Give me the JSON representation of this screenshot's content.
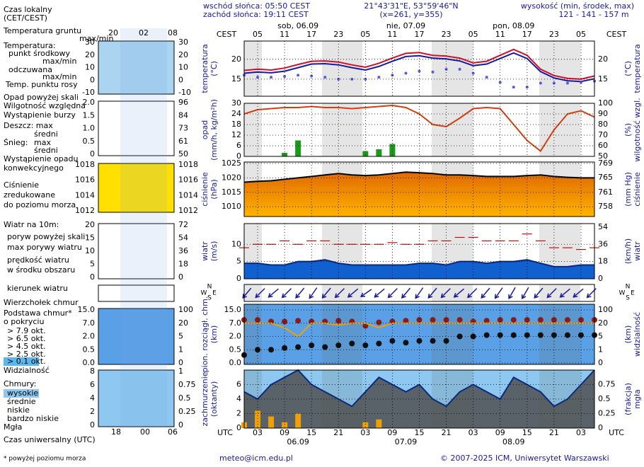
{
  "header": {
    "sunrise": "wschód słońca: 05:50 CEST",
    "sunset": "zachód słońca: 19:11 CEST",
    "coords": "21°43'31\"E, 53°59'46\"N",
    "grid_point": "(x=261,  y=355)",
    "altitude_title": "wysokość (min, środek, max)",
    "altitude": "121 - 141 - 157 m",
    "compass": [
      "N",
      "W",
      "E",
      "S"
    ]
  },
  "footer": {
    "note": "* powyżej poziomu morza",
    "email": "meteo@icm.edu.pl",
    "copyright": "© 2007-2025 ICM, Uniwersytet Warszawski"
  },
  "time_axis": {
    "top_label": "CEST",
    "bottom_label": "UTC",
    "top_hours": [
      null,
      "05",
      null,
      "11",
      null,
      "17",
      null,
      "23",
      null,
      "05",
      null,
      "11",
      null,
      "17",
      null,
      "23",
      null,
      "05",
      null,
      "11",
      null,
      "17",
      null,
      "23",
      null,
      "05",
      null
    ],
    "bottom_hours": [
      null,
      "03",
      null,
      "09",
      null,
      "15",
      null,
      "21",
      null,
      "03",
      null,
      "09",
      null,
      "15",
      null,
      "21",
      null,
      "03",
      null,
      "09",
      null,
      "15",
      null,
      "21",
      null,
      "03",
      null
    ],
    "top_dates": [
      null,
      null,
      null,
      null,
      "sob, 06.09",
      null,
      null,
      null,
      null,
      null,
      null,
      null,
      "nie, 07.09",
      null,
      null,
      null,
      null,
      null,
      null,
      null,
      "pon, 08.09",
      null,
      null,
      null,
      null,
      null,
      null
    ],
    "bottom_dates": [
      null,
      null,
      null,
      null,
      "06.09",
      null,
      null,
      null,
      null,
      null,
      null,
      null,
      "07.09",
      null,
      null,
      null,
      null,
      null,
      null,
      null,
      "08.09",
      null,
      null,
      null,
      null,
      null,
      null
    ]
  },
  "legend": {
    "top_hours": [
      "20",
      "02",
      "08"
    ],
    "bottom_hours": [
      "18",
      "00",
      "06"
    ],
    "items": [
      "Czas lokalny",
      "(CET/CEST)",
      "Temperatura gruntu",
      "max/min",
      "Temperatura:",
      "punkt środkowy",
      "max/min",
      "odczuwana",
      "max/min",
      "Temp. punktu rosy",
      "Opad powyżej skali",
      "Wilgotność względna",
      "Wystąpienie burzy",
      "Deszcz: max",
      "średni",
      "Śnieg:",
      "max",
      "średni",
      "Wystąpienie opadu",
      "konwekcyjnego",
      "Ciśnienie",
      "zredukowane",
      "do poziomu morza",
      "Wiatr na 10m:",
      "poryw powyżej skali",
      "max porywy wiatru",
      "prędkość wiatru",
      "w środku obszaru",
      "kierunek wiatru",
      "Wierzchołek chmur",
      "Podstawa chmur*",
      "o pokryciu",
      "> 7.9 okt.",
      "> 6.5 okt.",
      "> 4.5 okt.",
      "> 2.5 okt.",
      "> 0.1 okt.",
      "Widzialność",
      "Chmury:",
      "wysokie",
      "średnie",
      "niskie",
      "bardzo niskie",
      "Mgła",
      "Czas uniwersalny (UTC)"
    ],
    "mini_axes": [
      {
        "left": [
          "30",
          "20",
          "10",
          "0",
          "-10"
        ],
        "right": [
          "30",
          "20",
          "10",
          "0",
          "-10"
        ]
      },
      {
        "left": [
          "2.0",
          "1.5",
          "1.0",
          "0.5",
          "0"
        ],
        "right": [
          "96",
          "84",
          "73",
          "61",
          "50"
        ]
      },
      {
        "left": [
          "1018",
          "1016",
          "1014",
          "1012"
        ],
        "right": [
          "1018",
          "1016",
          "1014",
          "1012"
        ]
      },
      {
        "left": [
          "20",
          "15",
          "10",
          "5",
          "0"
        ],
        "right": [
          "72",
          "54",
          "36",
          "18",
          "0"
        ]
      },
      {
        "left": [
          "15.0",
          "7.0",
          "2.0",
          "0.5",
          "0.0"
        ],
        "right": [
          "100",
          "20",
          "5",
          "1",
          "0"
        ]
      },
      {
        "left": [
          "8",
          "6",
          "4",
          "2",
          "0"
        ],
        "right": [
          "1",
          "0.75",
          "0.5",
          "0.25",
          "0"
        ]
      }
    ]
  },
  "chart_data": [
    {
      "type": "line",
      "y_label": [
        "temperatura",
        "(°C)"
      ],
      "y2_label": [
        "(°C)",
        "temperatura"
      ],
      "ylim": [
        10.7,
        24.6
      ],
      "yticks": [
        15,
        20
      ],
      "y2lim": [
        10.7,
        24.6
      ],
      "y2ticks": [
        15,
        20
      ],
      "grid": true,
      "series": [
        {
          "mark": "line",
          "color": "#d0102a",
          "values": [
            17.2,
            17.5,
            17.3,
            17.8,
            18.7,
            19.5,
            19.6,
            19.3,
            18.6,
            18,
            19,
            20.3,
            21.5,
            21.7,
            21,
            20.8,
            20.3,
            19.1,
            19.5,
            21,
            22.5,
            21,
            17.5,
            15.9,
            15.2,
            15,
            15.8
          ]
        },
        {
          "mark": "line",
          "color": "#1a1aa0",
          "values": [
            16.5,
            16.8,
            16.6,
            17,
            17.9,
            18.8,
            18.9,
            18.6,
            17.9,
            17.3,
            18.2,
            19.5,
            20.7,
            20.9,
            20.3,
            20.1,
            19.6,
            18.4,
            18.8,
            20.2,
            21.6,
            20.2,
            16.9,
            15.3,
            14.6,
            14.4,
            15.1
          ]
        },
        {
          "mark": "dots",
          "color": "#5a5ae0",
          "values": [
            16,
            15.5,
            15.5,
            15.7,
            16,
            15.8,
            15.5,
            15,
            15,
            15,
            15.5,
            16,
            16.5,
            17,
            16.8,
            17.5,
            17.5,
            16.5,
            15.5,
            14.2,
            13,
            13,
            14,
            14,
            14,
            14.2,
            14.5
          ]
        }
      ]
    },
    {
      "type": "bar",
      "y_label": [
        "opad",
        "(mm/h, kg/m²h)"
      ],
      "y2_label": [
        "(%)",
        "wilgotność wzgl."
      ],
      "ylim": [
        0,
        30
      ],
      "yticks": [
        0,
        6,
        12,
        18,
        24,
        30
      ],
      "y2lim": [
        50,
        100
      ],
      "y2ticks": [
        50,
        60,
        70,
        80,
        90,
        100
      ],
      "grid": true,
      "series": [
        {
          "mark": "bar",
          "color": "#1a9a1a",
          "values": [
            0,
            0,
            0,
            2,
            9,
            0,
            0,
            0,
            0,
            3,
            4,
            7,
            0,
            0,
            0,
            0,
            0,
            0,
            0,
            0,
            0,
            0,
            0,
            0,
            0,
            0,
            0
          ]
        },
        {
          "mark": "line",
          "color": "#d04010",
          "axis": "y2",
          "values": [
            90,
            94,
            95,
            96,
            96,
            97,
            96,
            96,
            95,
            96,
            97,
            98,
            96,
            90,
            80,
            78,
            86,
            95,
            96,
            95,
            80,
            65,
            55,
            75,
            90,
            93,
            87
          ]
        }
      ]
    },
    {
      "type": "area",
      "y_label": [
        "ciśnienie",
        "(hPa)"
      ],
      "y2_label": [
        "(mm Hg)",
        "ciśnienie"
      ],
      "ylim": [
        1006.6,
        1025.5
      ],
      "yticks": [
        1010,
        1015,
        1020,
        1025
      ],
      "y2lim": [
        755.0,
        769.2
      ],
      "y2ticks": [
        {
          "value": 757.6,
          "label": "758"
        },
        {
          "value": 761.3,
          "label": "761"
        },
        {
          "value": 765.1,
          "label": "765"
        },
        {
          "value": 768.8,
          "label": "769"
        }
      ],
      "grid": true,
      "series": [
        {
          "mark": "area",
          "color": "#e88a10",
          "values": [
            1018.5,
            1018.8,
            1019,
            1019.5,
            1020,
            1020.5,
            1021,
            1021.5,
            1021,
            1020.8,
            1021,
            1021.5,
            1022,
            1021.8,
            1021.5,
            1021,
            1021,
            1020.8,
            1020.5,
            1020.5,
            1020.5,
            1020.8,
            1021,
            1020.5,
            1020.2,
            1020,
            1020
          ]
        }
      ]
    },
    {
      "type": "area",
      "y_label": [
        "wiatr",
        "(m/s)"
      ],
      "y2_label": [
        "(km/h)",
        "wiatr"
      ],
      "ylim": [
        0,
        16
      ],
      "yticks": [
        0,
        5,
        10
      ],
      "y2lim": [
        0,
        57.6
      ],
      "y2ticks": [
        0,
        18,
        36,
        54
      ],
      "grid": true,
      "series": [
        {
          "mark": "area",
          "color": "#1060d0",
          "values": [
            4.5,
            4.5,
            4,
            4,
            5,
            5,
            5.5,
            4.5,
            4,
            4,
            4,
            4,
            4,
            4.5,
            4.5,
            4,
            5,
            5,
            4.5,
            5,
            5,
            5.5,
            4.5,
            3.5,
            3.5,
            4,
            4
          ]
        },
        {
          "mark": "dashes",
          "color": "#c01010",
          "values": [
            9,
            10,
            10,
            11,
            10,
            11,
            11,
            10,
            10,
            10,
            10,
            10.5,
            10,
            10,
            11,
            11,
            12,
            12,
            11,
            11,
            11,
            13,
            11,
            9,
            9,
            8.5,
            9
          ]
        }
      ]
    },
    {
      "type": "arrows",
      "color": "#1a1a9a",
      "values": [
        40,
        45,
        50,
        45,
        40,
        35,
        40,
        45,
        50,
        55,
        50,
        45,
        40,
        35,
        40,
        45,
        50,
        45,
        40,
        35,
        30,
        30,
        40,
        45,
        50,
        50,
        45
      ]
    },
    {
      "type": "scatter",
      "y_label": [
        "pion. rozciągł. chm.",
        "(km)"
      ],
      "y2_label": [
        "(km)",
        "widzialność"
      ],
      "scale": "piecewise",
      "ylim": [
        0,
        15
      ],
      "yticks": [
        {
          "value": 0,
          "label": "0.0"
        },
        {
          "value": 0.5,
          "label": "0.5"
        },
        {
          "value": 2,
          "label": "2.0"
        },
        {
          "value": 7,
          "label": "7.0"
        },
        {
          "value": 15,
          "label": "15.0"
        }
      ],
      "y2_scale": "piecewise",
      "y2lim": [
        0,
        100
      ],
      "y2ticks": [
        0,
        1,
        5,
        20,
        100
      ],
      "grid": true,
      "series": [
        {
          "mark": "dots",
          "color": "#8b1a1a",
          "values": [
            9,
            9,
            8,
            8,
            8.5,
            8,
            8,
            8.5,
            8,
            6,
            7.5,
            8,
            8.5,
            9,
            9,
            9,
            9,
            8,
            8.5,
            9,
            9,
            9,
            9,
            9,
            9,
            9,
            9
          ]
        },
        {
          "mark": "dots",
          "color": "#111111",
          "values": [
            0.3,
            0.5,
            0.5,
            0.7,
            0.8,
            1,
            0.8,
            1,
            1.2,
            1,
            1.2,
            1.5,
            1.3,
            1.5,
            1.5,
            1.5,
            2,
            2,
            2.5,
            2.5,
            2.5,
            2.5,
            2.5,
            2.5,
            2.5,
            2.5,
            2.5
          ]
        },
        {
          "mark": "line",
          "color": "#f0a000",
          "axis": "y2",
          "values": [
            20,
            20,
            20,
            15,
            5,
            20,
            20,
            18,
            20,
            20,
            15,
            20,
            20,
            20,
            20,
            20,
            20,
            20,
            20,
            20,
            20,
            20,
            20,
            20,
            20,
            20,
            20
          ]
        }
      ]
    },
    {
      "type": "area",
      "y_label": [
        "zachmurzenie",
        "(oktanty)"
      ],
      "y2_label": [
        "(frakcja)",
        "mgła"
      ],
      "ylim": [
        0,
        8
      ],
      "yticks": [
        0,
        2,
        4,
        6
      ],
      "y2lim": [
        0,
        1
      ],
      "y2ticks": [
        0,
        0.25,
        0.5,
        0.75
      ],
      "grid": true,
      "series": [
        {
          "mark": "area",
          "color": "#505050",
          "values": [
            5,
            4,
            6,
            7,
            8,
            6,
            5,
            4,
            3,
            5,
            7,
            6,
            5,
            6,
            4,
            3,
            5,
            6,
            5,
            4,
            7,
            6,
            5,
            3,
            4,
            6,
            8
          ]
        },
        {
          "mark": "bar",
          "color": "#f0a000",
          "axis": "y2",
          "values": [
            0.1,
            0.3,
            0.2,
            0.1,
            0.25,
            0,
            0,
            0,
            0,
            0.1,
            0.15,
            0,
            0,
            0,
            0,
            0,
            0,
            0,
            0,
            0,
            0,
            0,
            0,
            0,
            0,
            0,
            0
          ]
        }
      ]
    }
  ]
}
